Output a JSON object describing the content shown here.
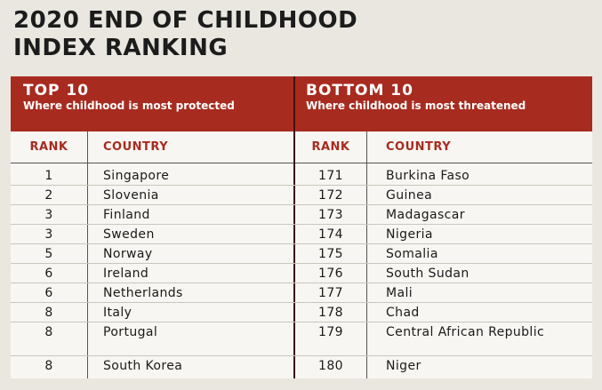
{
  "title": {
    "line1": "2020 END OF CHILDHOOD",
    "line2": "INDEX RANKING"
  },
  "top": {
    "heading": "TOP 10",
    "subheading": "Where childhood is most protected",
    "rank_header": "RANK",
    "country_header": "COUNTRY",
    "rows": [
      {
        "rank": "1",
        "country": "Singapore"
      },
      {
        "rank": "2",
        "country": "Slovenia"
      },
      {
        "rank": "3",
        "country": "Finland"
      },
      {
        "rank": "3",
        "country": "Sweden"
      },
      {
        "rank": "5",
        "country": "Norway"
      },
      {
        "rank": "6",
        "country": "Ireland"
      },
      {
        "rank": "6",
        "country": "Netherlands"
      },
      {
        "rank": "8",
        "country": "Italy"
      },
      {
        "rank": "8",
        "country": "Portugal"
      },
      {
        "rank": "8",
        "country": "South Korea"
      }
    ]
  },
  "bottom": {
    "heading": "BOTTOM 10",
    "subheading": "Where childhood is most threatened",
    "rank_header": "RANK",
    "country_header": "COUNTRY",
    "rows": [
      {
        "rank": "171",
        "country": "Burkina Faso"
      },
      {
        "rank": "172",
        "country": "Guinea"
      },
      {
        "rank": "173",
        "country": "Madagascar"
      },
      {
        "rank": "174",
        "country": "Nigeria"
      },
      {
        "rank": "175",
        "country": "Somalia"
      },
      {
        "rank": "176",
        "country": "South Sudan"
      },
      {
        "rank": "177",
        "country": "Mali"
      },
      {
        "rank": "178",
        "country": "Chad"
      },
      {
        "rank": "179",
        "country": "Central African Republic"
      },
      {
        "rank": "180",
        "country": "Niger"
      }
    ]
  },
  "colors": {
    "header_band": "#a82b1f",
    "column_header_text": "#a82b1f",
    "background": "#e9e7df"
  }
}
